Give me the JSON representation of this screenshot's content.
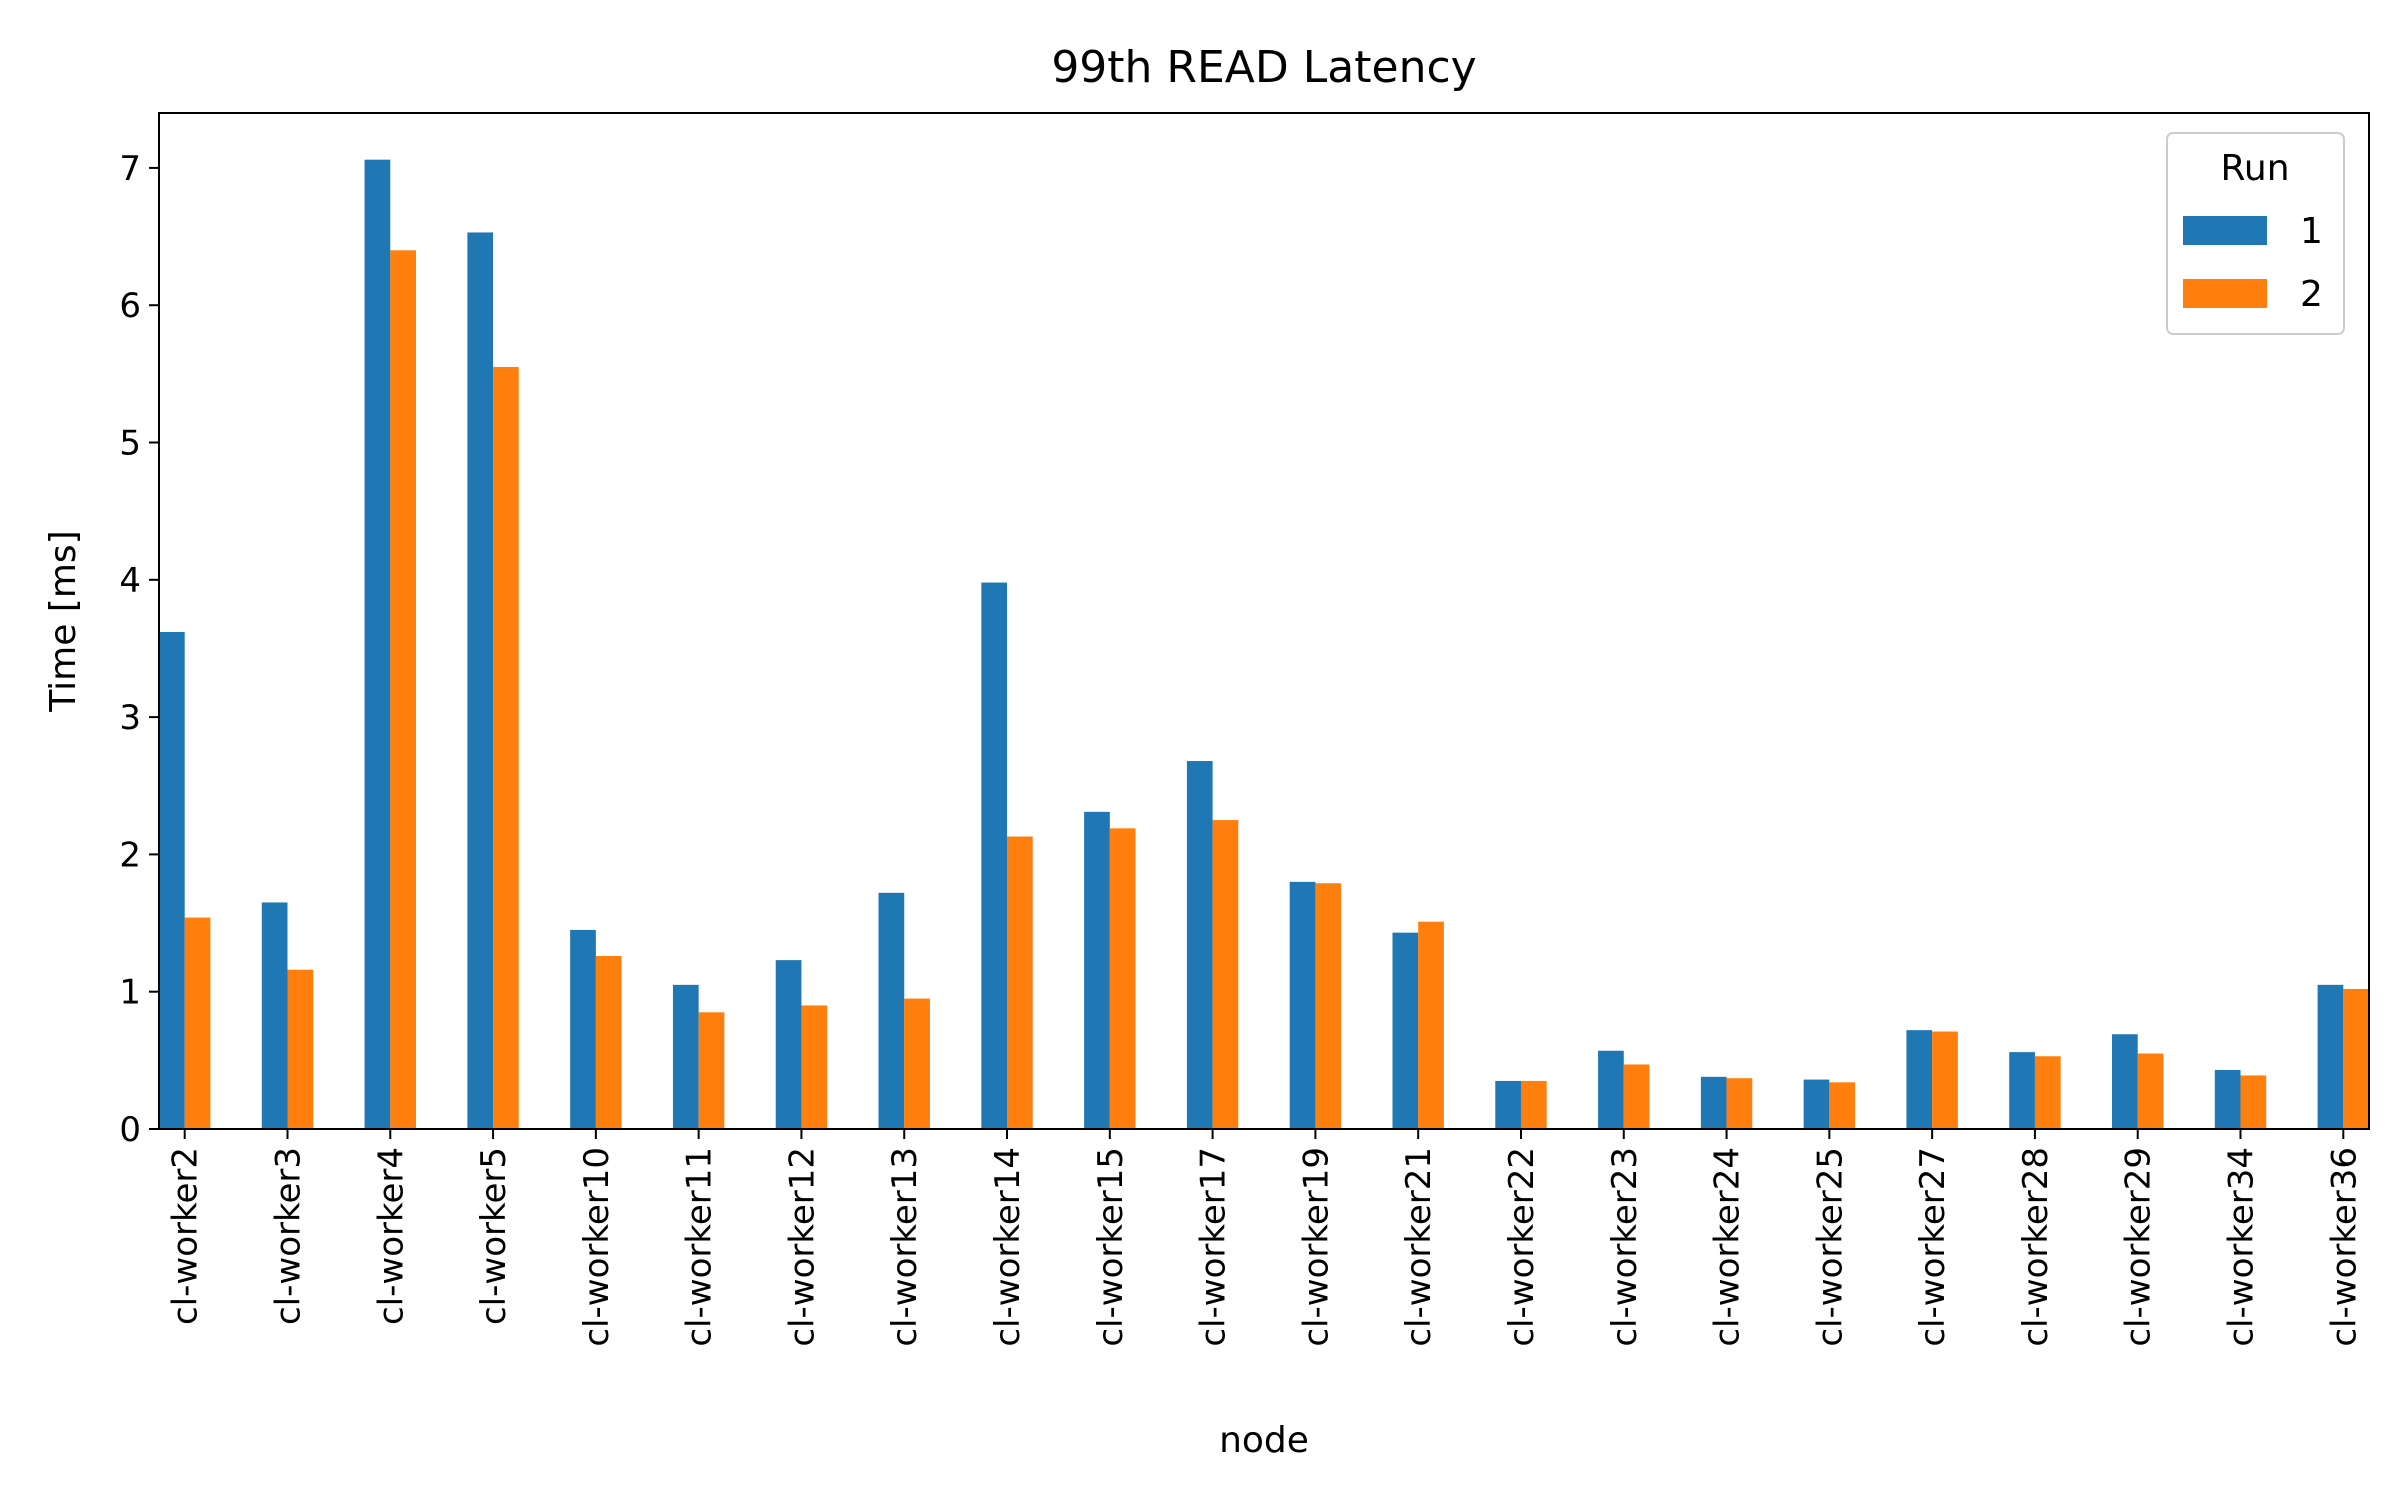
{
  "chart_data": {
    "type": "bar",
    "title": "99th READ Latency",
    "xlabel": "node",
    "ylabel": "Time [ms]",
    "ylim": [
      0,
      7.4
    ],
    "yticks": [
      0,
      1,
      2,
      3,
      4,
      5,
      6,
      7
    ],
    "grid": false,
    "legend": {
      "title": "Run",
      "placement": "top-right"
    },
    "categories": [
      "cl-worker2",
      "cl-worker3",
      "cl-worker4",
      "cl-worker5",
      "cl-worker10",
      "cl-worker11",
      "cl-worker12",
      "cl-worker13",
      "cl-worker14",
      "cl-worker15",
      "cl-worker17",
      "cl-worker19",
      "cl-worker21",
      "cl-worker22",
      "cl-worker23",
      "cl-worker24",
      "cl-worker25",
      "cl-worker27",
      "cl-worker28",
      "cl-worker29",
      "cl-worker34",
      "cl-worker36"
    ],
    "series": [
      {
        "name": "1",
        "color": "#1f77b4",
        "values": [
          3.62,
          1.65,
          7.06,
          6.53,
          1.45,
          1.05,
          1.23,
          1.72,
          3.98,
          2.31,
          2.68,
          1.8,
          1.43,
          0.35,
          0.57,
          0.38,
          0.36,
          0.72,
          0.56,
          0.69,
          0.43,
          1.05
        ]
      },
      {
        "name": "2",
        "color": "#ff7f0e",
        "values": [
          1.54,
          1.16,
          6.4,
          5.55,
          1.26,
          0.85,
          0.9,
          0.95,
          2.13,
          2.19,
          2.25,
          1.79,
          1.51,
          0.35,
          0.47,
          0.37,
          0.34,
          0.71,
          0.53,
          0.55,
          0.39,
          1.02
        ]
      }
    ]
  }
}
